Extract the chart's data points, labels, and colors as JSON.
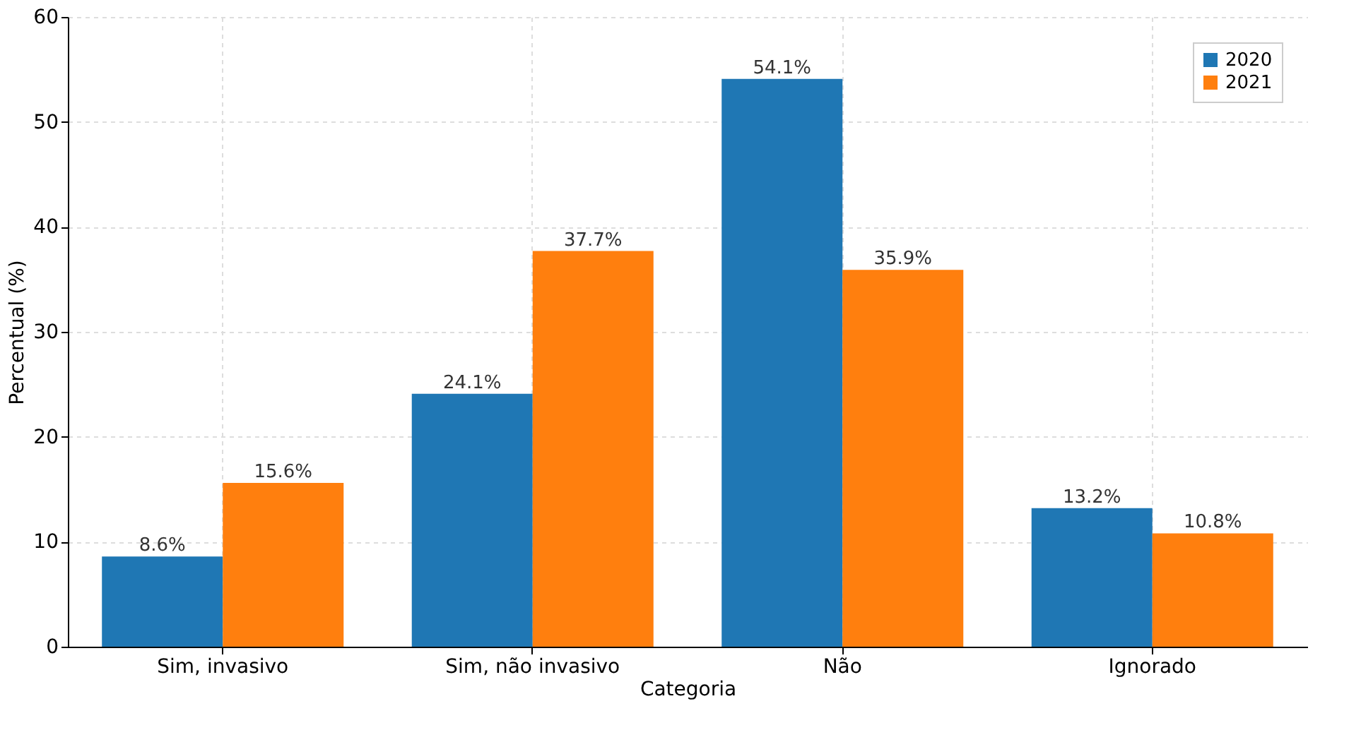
{
  "chart_data": {
    "type": "bar",
    "xlabel": "Categoria",
    "ylabel": "Percentual (%)",
    "categories": [
      "Sim, invasivo",
      "Sim, não invasivo",
      "Não",
      "Ignorado"
    ],
    "series": [
      {
        "name": "2020",
        "color": "#1f77b4",
        "values": [
          8.6,
          24.1,
          54.1,
          13.2
        ],
        "value_labels": [
          "8.6%",
          "24.1%",
          "54.1%",
          "13.2%"
        ]
      },
      {
        "name": "2021",
        "color": "#ff7f0e",
        "values": [
          15.6,
          37.7,
          35.9,
          10.8
        ],
        "value_labels": [
          "15.6%",
          "37.7%",
          "35.9%",
          "10.8%"
        ]
      }
    ],
    "ylim": [
      0,
      60
    ],
    "yticks": [
      0,
      10,
      20,
      30,
      40,
      50,
      60
    ],
    "grid": true,
    "legend": "top right"
  }
}
